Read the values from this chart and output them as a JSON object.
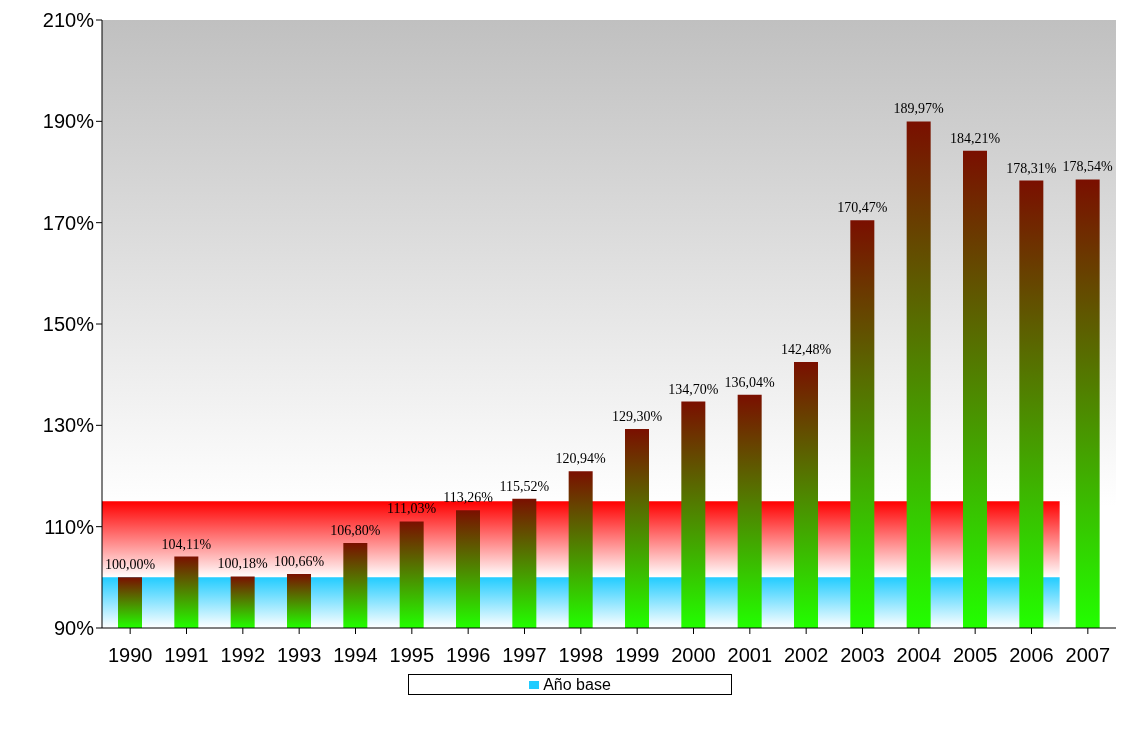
{
  "chart_data": {
    "type": "bar",
    "categories": [
      "1990",
      "1991",
      "1992",
      "1993",
      "1994",
      "1995",
      "1996",
      "1997",
      "1998",
      "1999",
      "2000",
      "2001",
      "2002",
      "2003",
      "2004",
      "2005",
      "2006",
      "2007"
    ],
    "values": [
      100.0,
      104.11,
      100.18,
      100.66,
      106.8,
      111.03,
      113.26,
      115.52,
      120.94,
      129.3,
      134.7,
      136.04,
      142.48,
      170.47,
      189.97,
      184.21,
      178.31,
      178.54
    ],
    "value_labels": [
      "100,00%",
      "104,11%",
      "100,18%",
      "100,66%",
      "106,80%",
      "111,03%",
      "113,26%",
      "115,52%",
      "120,94%",
      "129,30%",
      "134,70%",
      "136,04%",
      "142,48%",
      "170,47%",
      "189,97%",
      "184,21%",
      "178,31%",
      "178,54%"
    ],
    "color": "#7a0f00",
    "ylim": [
      90,
      210
    ],
    "yticks": [
      {
        "value": 90,
        "label": "90%"
      },
      {
        "value": 110,
        "label": "110%"
      },
      {
        "value": 130,
        "label": "130%"
      },
      {
        "value": 150,
        "label": "150%"
      },
      {
        "value": 170,
        "label": "170%"
      },
      {
        "value": 190,
        "label": "190%"
      },
      {
        "value": 210,
        "label": "210%"
      }
    ],
    "bands": [
      {
        "axis": "y",
        "from": 100,
        "to": 115,
        "color": "#ff0000"
      },
      {
        "axis": "y",
        "from": 90,
        "to": 100,
        "label": "Año base",
        "color": "#22ccff"
      }
    ],
    "grid": false,
    "legend": "bottom"
  }
}
